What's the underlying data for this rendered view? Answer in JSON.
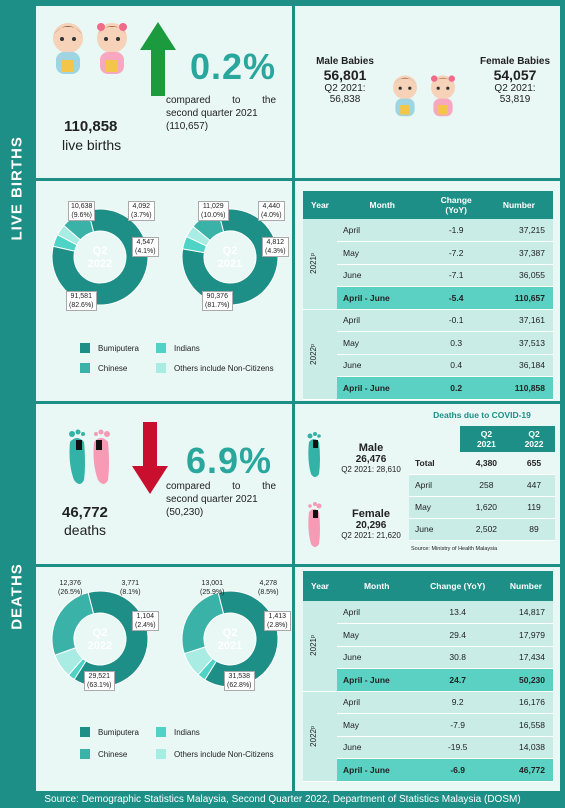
{
  "sidebar": {
    "births": "LIVE BIRTHS",
    "deaths": "DEATHS"
  },
  "colors": {
    "bumiputera": "#1e8f86",
    "chinese": "#3bb2a7",
    "indians": "#4fd3c6",
    "others": "#a8ece4"
  },
  "births_summary": {
    "total": "110,858",
    "total_label": "live births",
    "pct": "0.2%",
    "compare_line1": "compared to the",
    "compare_line2": "second quarter 2021",
    "compare_line3": "(110,657)",
    "male": {
      "title": "Male Babies",
      "value": "56,801",
      "prev_label": "Q2 2021:",
      "prev": "56,838"
    },
    "female": {
      "title": "Female Babies",
      "value": "54,057",
      "prev_label": "Q2 2021:",
      "prev": "53,819"
    }
  },
  "births_donuts": [
    {
      "center1": "Q2",
      "center2": "2022",
      "labels": {
        "chinese": "10,638\n(9.6%)",
        "others": "4,092\n(3.7%)",
        "indians": "4,547\n(4.1%)",
        "bumi": "91,581\n(82.6%)"
      },
      "shares": [
        82.6,
        4.1,
        3.7,
        9.6
      ]
    },
    {
      "center1": "Q2",
      "center2": "2021",
      "labels": {
        "chinese": "11,029\n(10.0%)",
        "others": "4,440\n(4.0%)",
        "indians": "4,812\n(4.3%)",
        "bumi": "90,376\n(81.7%)"
      },
      "shares": [
        81.7,
        4.3,
        4.0,
        10.0
      ]
    }
  ],
  "legend": {
    "bumiputera": "Bumiputera",
    "indians": "Indians",
    "chinese": "Chinese",
    "others": "Others include Non-Citizens"
  },
  "births_table": {
    "headers": [
      "Year",
      "Month",
      "Change\n(YoY)",
      "Number"
    ],
    "groups": [
      {
        "year": "2021ᵖ",
        "rows": [
          [
            "April",
            "-1.9",
            "37,215"
          ],
          [
            "May",
            "-7.2",
            "37,387"
          ],
          [
            "June",
            "-7.1",
            "36,055"
          ]
        ],
        "total": [
          "April - June",
          "-5.4",
          "110,657"
        ]
      },
      {
        "year": "2022ᵖ",
        "rows": [
          [
            "April",
            "-0.1",
            "37,161"
          ],
          [
            "May",
            "0.3",
            "37,513"
          ],
          [
            "June",
            "0.4",
            "36,184"
          ]
        ],
        "total": [
          "April - June",
          "0.2",
          "110,858"
        ]
      }
    ]
  },
  "deaths_summary": {
    "total": "46,772",
    "total_label": "deaths",
    "pct": "6.9%",
    "compare_line1": "compared to the",
    "compare_line2": "second quarter 2021",
    "compare_line3": "(50,230)",
    "male": {
      "title": "Male",
      "value": "26,476",
      "prev": "Q2 2021: 28,610"
    },
    "female": {
      "title": "Female",
      "value": "20,296",
      "prev": "Q2 2021: 21,620"
    }
  },
  "covid": {
    "title": "Deaths due to COVID-19",
    "headers": [
      "",
      "Q2\n2021",
      "Q2\n2022"
    ],
    "rows": [
      [
        "Total",
        "4,380",
        "655"
      ],
      [
        "April",
        "258",
        "447"
      ],
      [
        "May",
        "1,620",
        "119"
      ],
      [
        "June",
        "2,502",
        "89"
      ]
    ],
    "source": "Source: Ministry of Health Malaysia"
  },
  "deaths_donuts": [
    {
      "center1": "Q2",
      "center2": "2022",
      "labels": {
        "chinese": "12,376\n(26.5%)",
        "others": "3,771\n(8.1%)",
        "indians": "1,104\n(2.4%)",
        "bumi": "29,521\n(63.1%)"
      },
      "shares": [
        63.1,
        2.4,
        8.1,
        26.5
      ]
    },
    {
      "center1": "Q2",
      "center2": "2021",
      "labels": {
        "chinese": "13,001\n(25.9%)",
        "others": "4,278\n(8.5%)",
        "indians": "1,413\n(2.8%)",
        "bumi": "31,538\n(62.8%)"
      },
      "shares": [
        62.8,
        2.8,
        8.5,
        25.9
      ]
    }
  ],
  "deaths_table": {
    "headers": [
      "Year",
      "Month",
      "Change (YoY)",
      "Number"
    ],
    "groups": [
      {
        "year": "2021ᵖ",
        "rows": [
          [
            "April",
            "13.4",
            "14,817"
          ],
          [
            "May",
            "29.4",
            "17,979"
          ],
          [
            "June",
            "30.8",
            "17,434"
          ]
        ],
        "total": [
          "April - June",
          "24.7",
          "50,230"
        ]
      },
      {
        "year": "2022ᵖ",
        "rows": [
          [
            "April",
            "9.2",
            "16,176"
          ],
          [
            "May",
            "-7.9",
            "16,558"
          ],
          [
            "June",
            "-19.5",
            "14,038"
          ]
        ],
        "total": [
          "April - June",
          "-6.9",
          "46,772"
        ]
      }
    ]
  },
  "footer": "Source: Demographic Statistics Malaysia, Second Quarter 2022, Department of Statistics Malaysia (DOSM)"
}
